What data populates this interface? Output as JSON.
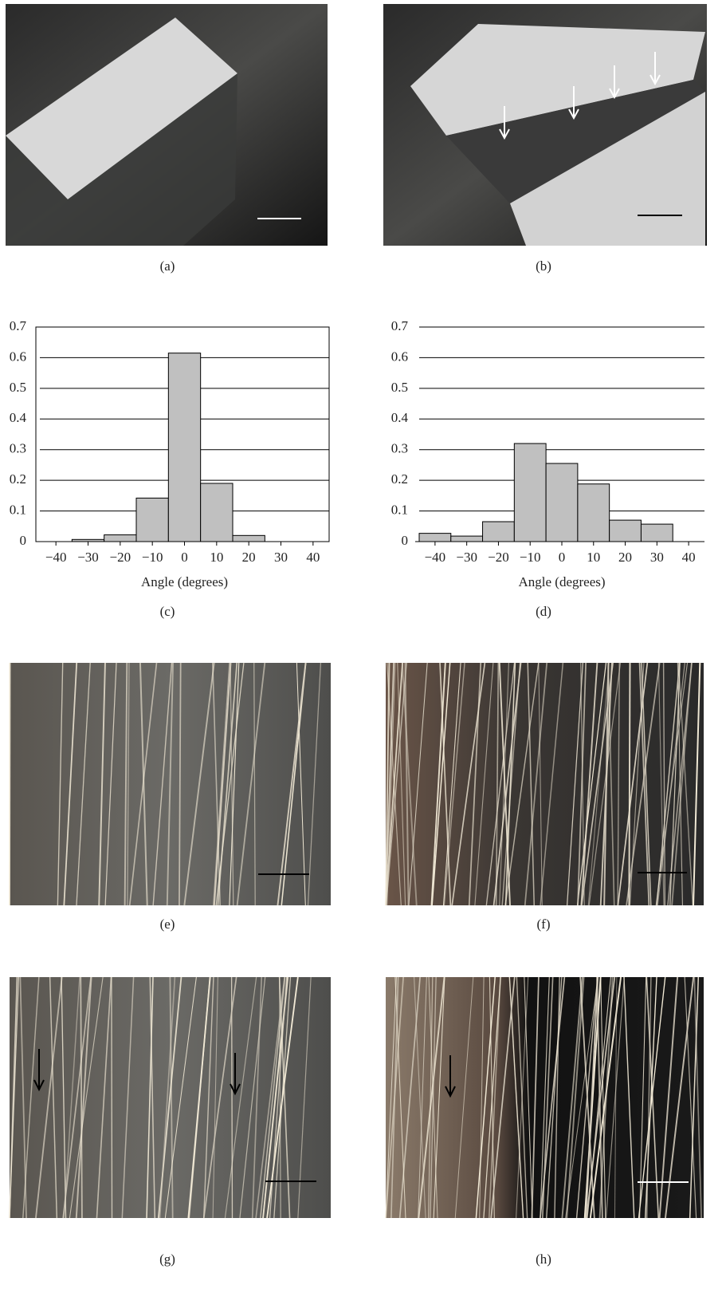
{
  "figure_labels": [
    "(a)",
    "(b)",
    "(c)",
    "(d)",
    "(e)",
    "(f)",
    "(g)",
    "(h)"
  ],
  "chart_data": [
    {
      "type": "histogram",
      "x_label": "Angle (degrees)",
      "bins": [
        -45,
        -35,
        -25,
        -15,
        -5,
        5,
        15,
        25,
        35,
        45
      ],
      "values": [
        0,
        0.007,
        0.022,
        0.142,
        0.615,
        0.19,
        0.02,
        0,
        0
      ],
      "color": "#c0c0c0",
      "frame": true,
      "grid": true,
      "xlim": [
        -45,
        45
      ],
      "ylim": [
        0,
        0.7
      ],
      "xticks": [
        {
          "value": -40,
          "label": "−40"
        },
        {
          "value": -30,
          "label": "−30"
        },
        {
          "value": -20,
          "label": "−20"
        },
        {
          "value": -10,
          "label": "−10"
        },
        0,
        10,
        20,
        30,
        40
      ],
      "yticks": [
        0,
        0.1,
        0.2,
        0.3,
        0.4,
        0.5,
        0.6,
        0.7
      ]
    },
    {
      "type": "histogram",
      "x_label": "Angle (degrees)",
      "bins": [
        -45,
        -35,
        -25,
        -15,
        -5,
        5,
        15,
        25,
        35,
        45
      ],
      "values": [
        0.027,
        0.018,
        0.065,
        0.32,
        0.255,
        0.188,
        0.07,
        0.057,
        0
      ],
      "color": "#c0c0c0",
      "frame": false,
      "grid": true,
      "xlim": [
        -45,
        45
      ],
      "ylim": [
        0,
        0.7
      ],
      "xticks": [
        {
          "value": -40,
          "label": "−40"
        },
        {
          "value": -30,
          "label": "−30"
        },
        {
          "value": -20,
          "label": "−20"
        },
        {
          "value": -10,
          "label": "−10"
        },
        0,
        10,
        20,
        30,
        40
      ],
      "yticks": [
        0,
        0.1,
        0.2,
        0.3,
        0.4,
        0.5,
        0.6,
        0.7
      ]
    }
  ]
}
